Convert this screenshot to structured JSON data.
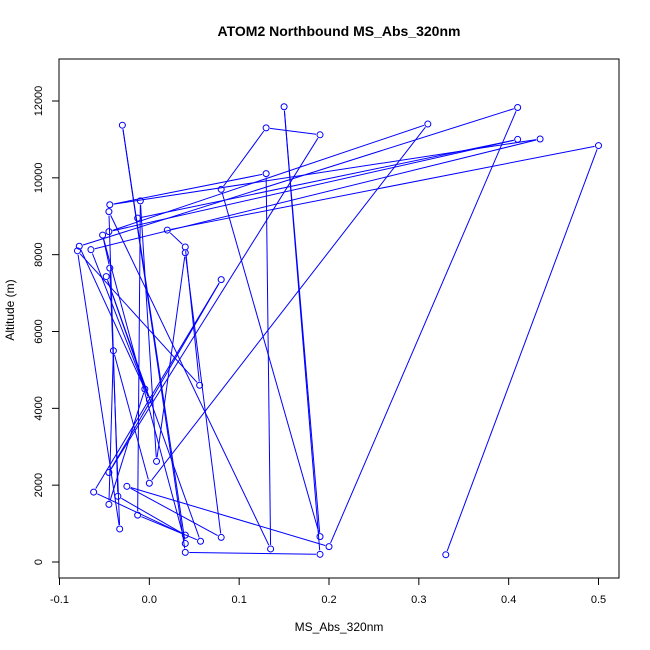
{
  "chart_data": {
    "type": "scatter",
    "mode": "lines+points",
    "title": "ATOM2 Northbound MS_Abs_320nm",
    "xlabel": "MS_Abs_320nm",
    "ylabel": "Altitude (m)",
    "xlim": [
      -0.1,
      0.5
    ],
    "ylim": [
      0,
      12000
    ],
    "x_ticks": [
      -0.1,
      0.0,
      0.1,
      0.2,
      0.3,
      0.4,
      0.5
    ],
    "x_tick_labels": [
      "-0.1",
      "0.0",
      "0.1",
      "0.2",
      "0.3",
      "0.4",
      "0.5"
    ],
    "y_ticks": [
      0,
      2000,
      4000,
      6000,
      8000,
      10000,
      12000
    ],
    "y_tick_labels": [
      "0",
      "2000",
      "4000",
      "6000",
      "8000",
      "10000",
      "12000"
    ],
    "grid": false,
    "color": "#0000ff",
    "series": [
      {
        "points": [
          [
            0.33,
            190
          ],
          [
            0.5,
            10840
          ],
          [
            0.02,
            8640
          ],
          [
            0.04,
            8200
          ],
          [
            0.056,
            4600
          ],
          [
            -0.08,
            8100
          ],
          [
            -0.033,
            860
          ],
          [
            -0.044,
            7650
          ],
          [
            -0.052,
            8510
          ],
          [
            0.04,
            480
          ],
          [
            -0.03,
            11370
          ],
          [
            0.04,
            250
          ],
          [
            0.19,
            200
          ],
          [
            0.15,
            11850
          ],
          [
            0.19,
            660
          ],
          [
            0.08,
            9700
          ],
          [
            0.13,
            11300
          ],
          [
            0.19,
            11120
          ],
          [
            -0.045,
            2330
          ],
          [
            0.08,
            7350
          ],
          [
            -0.062,
            1820
          ],
          [
            0.04,
            700
          ],
          [
            -0.035,
            1710
          ],
          [
            -0.045,
            9120
          ],
          [
            0.135,
            340
          ],
          [
            0.13,
            10110
          ],
          [
            -0.044,
            9300
          ],
          [
            0.435,
            11010
          ],
          [
            -0.065,
            8130
          ],
          [
            0.0,
            4220
          ],
          [
            -0.048,
            7430
          ],
          [
            0.057,
            540
          ],
          [
            -0.013,
            1220
          ],
          [
            -0.01,
            9400
          ],
          [
            0.008,
            2620
          ],
          [
            0.04,
            8050
          ],
          [
            0.08,
            640
          ],
          [
            -0.025,
            1970
          ],
          [
            0.2,
            400
          ],
          [
            0.41,
            11830
          ],
          [
            -0.078,
            8220
          ],
          [
            -0.005,
            4500
          ],
          [
            -0.045,
            1500
          ],
          [
            -0.04,
            5500
          ],
          [
            0.0,
            2050
          ],
          [
            0.31,
            11400
          ],
          [
            -0.045,
            8600
          ],
          [
            0.41,
            11000
          ],
          [
            -0.013,
            8950
          ]
        ]
      }
    ]
  }
}
